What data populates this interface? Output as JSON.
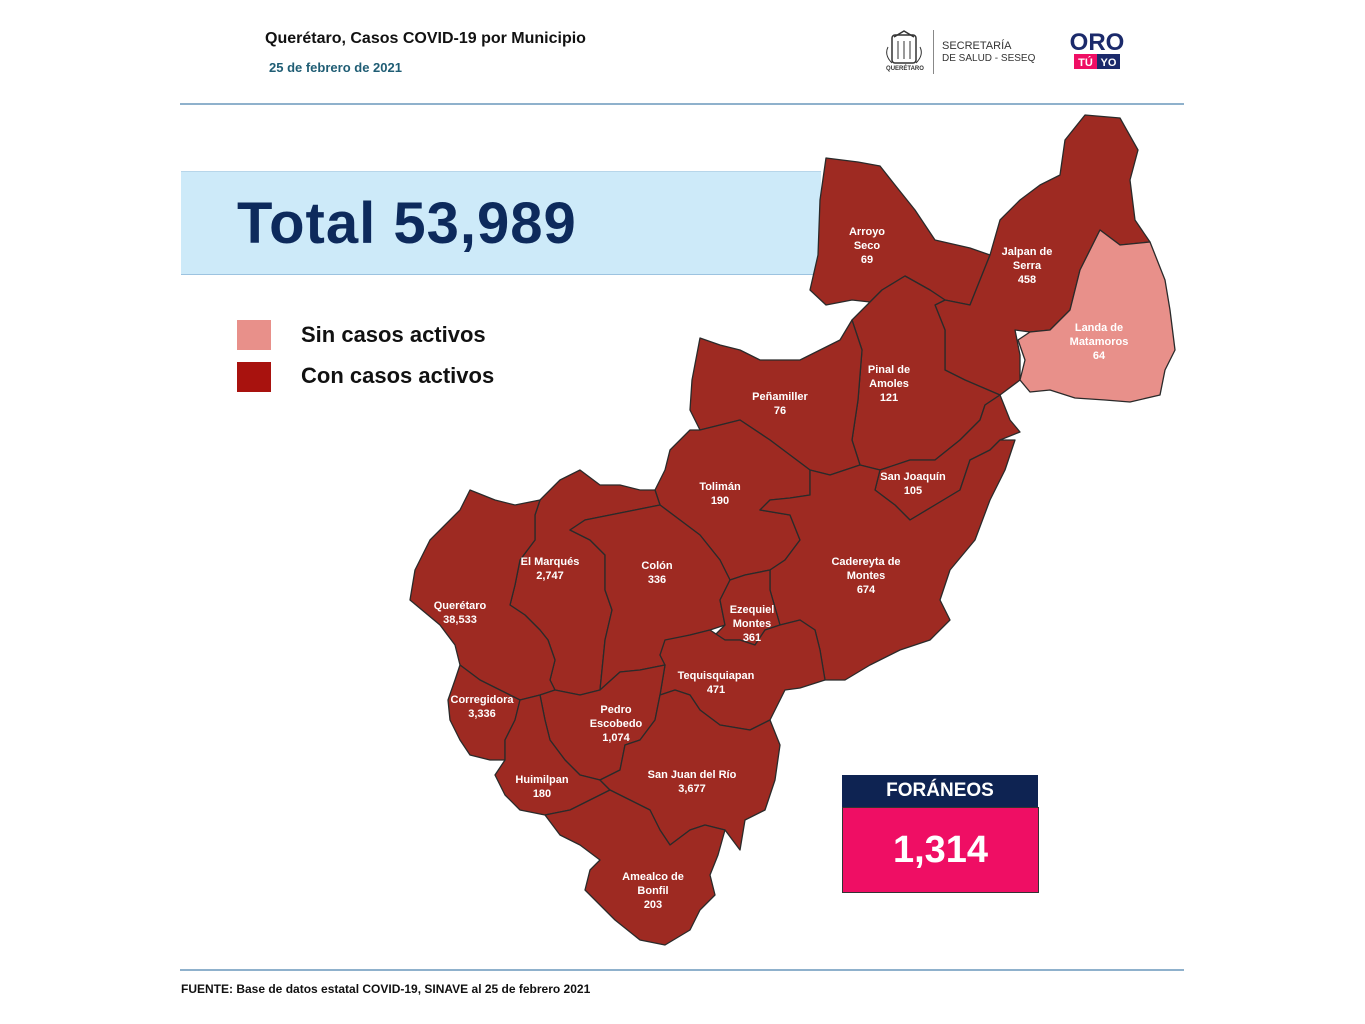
{
  "header": {
    "title": "Querétaro, Casos COVID-19 por Municipio",
    "date": "25 de febrero de 2021"
  },
  "logos": {
    "state_seal_caption": "QUERÉTARO",
    "secretaria_line1": "SECRETARÍA",
    "secretaria_line2": "DE SALUD - SESEQ",
    "oro_top": "ORO",
    "oro_tu": "TÚ",
    "oro_yo": "YO"
  },
  "total": {
    "label": "Total 53,989"
  },
  "legend": {
    "inactive_label": "Sin casos activos",
    "active_label": "Con casos activos"
  },
  "colors": {
    "active": "#9e2a22",
    "inactive": "#e8908a",
    "banner": "#cdeaf9",
    "foraneos_header": "#0e2352",
    "foraneos_value": "#ef0e64"
  },
  "municipios": [
    {
      "id": "arroyo-seco",
      "name_lines": [
        "Arroyo",
        "Seco"
      ],
      "cases": "69",
      "active": true
    },
    {
      "id": "jalpan-de-serra",
      "name_lines": [
        "Jalpan de",
        "Serra"
      ],
      "cases": "458",
      "active": true
    },
    {
      "id": "landa-de-matamoros",
      "name_lines": [
        "Landa de",
        "Matamoros"
      ],
      "cases": "64",
      "active": false
    },
    {
      "id": "pinal-de-amoles",
      "name_lines": [
        "Pinal de",
        "Amoles"
      ],
      "cases": "121",
      "active": true
    },
    {
      "id": "penamiller",
      "name_lines": [
        "Peñamiller"
      ],
      "cases": "76",
      "active": true
    },
    {
      "id": "san-joaquin",
      "name_lines": [
        "San Joaquín"
      ],
      "cases": "105",
      "active": true
    },
    {
      "id": "toliman",
      "name_lines": [
        "Tolimán"
      ],
      "cases": "190",
      "active": true
    },
    {
      "id": "cadereyta-de-montes",
      "name_lines": [
        "Cadereyta de",
        "Montes"
      ],
      "cases": "674",
      "active": true
    },
    {
      "id": "el-marques",
      "name_lines": [
        "El  Marqués"
      ],
      "cases": "2,747",
      "active": true
    },
    {
      "id": "colon",
      "name_lines": [
        "Colón"
      ],
      "cases": "336",
      "active": true
    },
    {
      "id": "ezequiel-montes",
      "name_lines": [
        "Ezequiel",
        "Montes"
      ],
      "cases": "361",
      "active": true
    },
    {
      "id": "queretaro",
      "name_lines": [
        "Querétaro"
      ],
      "cases": "38,533",
      "active": true
    },
    {
      "id": "tequisquiapan",
      "name_lines": [
        "Tequisquiapan"
      ],
      "cases": "471",
      "active": true
    },
    {
      "id": "corregidora",
      "name_lines": [
        "Corregidora"
      ],
      "cases": "3,336",
      "active": true
    },
    {
      "id": "pedro-escobedo",
      "name_lines": [
        "Pedro",
        "Escobedo"
      ],
      "cases": "1,074",
      "active": true
    },
    {
      "id": "huimilpan",
      "name_lines": [
        "Huimilpan"
      ],
      "cases": "180",
      "active": true
    },
    {
      "id": "san-juan-del-rio",
      "name_lines": [
        "San Juan del Río"
      ],
      "cases": "3,677",
      "active": true
    },
    {
      "id": "amealco-de-bonfil",
      "name_lines": [
        "Amealco de",
        "Bonfil"
      ],
      "cases": "203",
      "active": true
    }
  ],
  "foraneos": {
    "label": "FORÁNEOS",
    "value": "1,314"
  },
  "footer": {
    "source": "FUENTE:  Base  de datos estatal COVID-19,  SINAVE  al 25 de febrero 2021"
  }
}
